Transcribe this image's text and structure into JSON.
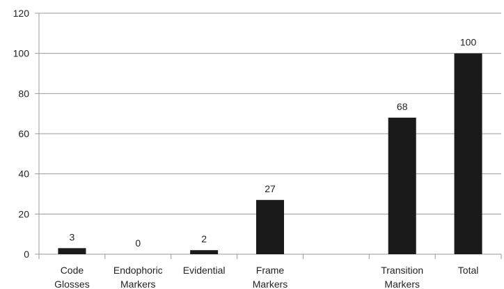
{
  "chart_data": {
    "type": "bar",
    "categories": [
      [
        "Code",
        "Glosses"
      ],
      [
        "Endophoric",
        "Markers"
      ],
      [
        "Evidential"
      ],
      [
        "Frame",
        "Markers"
      ],
      [
        ""
      ],
      [
        "Transition",
        "Markers"
      ],
      [
        "Total"
      ]
    ],
    "values": [
      3,
      0,
      2,
      27,
      null,
      68,
      100
    ],
    "data_labels": [
      "3",
      "0",
      "2",
      "27",
      "",
      "68",
      "100"
    ],
    "ylim": [
      0,
      120
    ],
    "yticks": [
      0,
      20,
      40,
      60,
      80,
      100,
      120
    ],
    "grid": true,
    "bar_color": "#1a1a1a",
    "grid_color": "#999999",
    "title": "",
    "xlabel": "",
    "ylabel": ""
  }
}
